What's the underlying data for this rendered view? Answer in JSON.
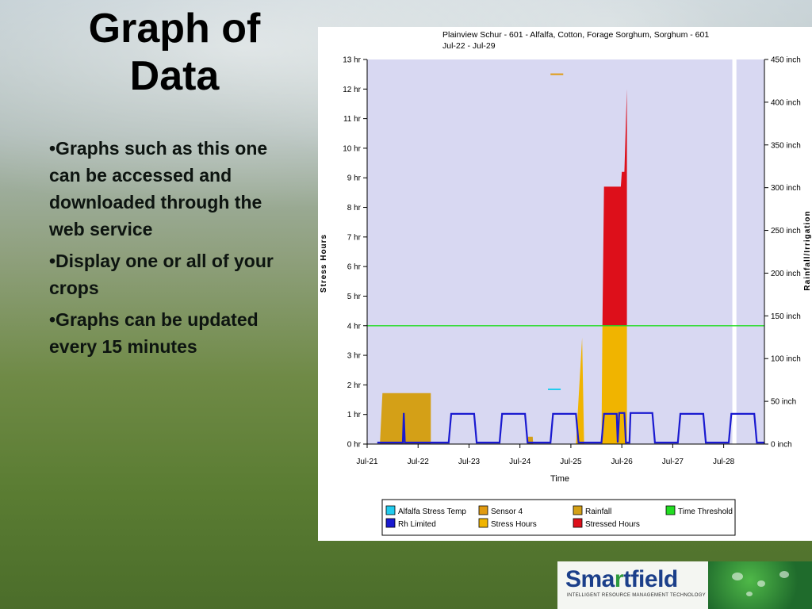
{
  "slide": {
    "title_line1": "Graph of",
    "title_line2": "Data",
    "bullets": [
      "•Graphs such as this one can be accessed and downloaded through the web service",
      "•Display one or all of your crops",
      "•Graphs can be updated every 15 minutes"
    ]
  },
  "logo": {
    "word_left": "Sma",
    "word_accent": "r",
    "word_right": "tfield",
    "tagline": "INTELLIGENT RESOURCE MANAGEMENT TECHNOLOGY"
  },
  "chart_data": {
    "type": "area",
    "title": "Plainview Schur - 601 - Alfalfa, Cotton, Forage Sorghum, Sorghum - 601",
    "subtitle": "Jul-22 - Jul-29",
    "xlabel": "Time",
    "ylabel": "Stress Hours",
    "y2label": "Rainfall/Irrigation",
    "xlim": [
      0,
      7.8
    ],
    "ylim": [
      0,
      13
    ],
    "y2lim": [
      0,
      450
    ],
    "x_ticks": [
      "Jul-21",
      "Jul-22",
      "Jul-23",
      "Jul-24",
      "Jul-25",
      "Jul-26",
      "Jul-27",
      "Jul-28"
    ],
    "y_ticks": [
      "0 hr",
      "1 hr",
      "2 hr",
      "3 hr",
      "4 hr",
      "5 hr",
      "6 hr",
      "7 hr",
      "8 hr",
      "9 hr",
      "10 hr",
      "11 hr",
      "12 hr",
      "13 hr"
    ],
    "y2_ticks": [
      "0 inch",
      "50 inch",
      "100 inch",
      "150 inch",
      "200 inch",
      "250 inch",
      "300 inch",
      "350 inch",
      "400 inch",
      "450 inch"
    ],
    "time_threshold": 4,
    "series": [
      {
        "name": "Alfalfa Stress Temp",
        "color": "#22ccee",
        "segments": [
          [
            [
              3.55,
              1.85
            ],
            [
              3.8,
              1.85
            ]
          ]
        ]
      },
      {
        "name": "Sensor 4",
        "color": "#e09a10",
        "segments": [
          [
            [
              3.6,
              12.5
            ],
            [
              3.85,
              12.5
            ]
          ]
        ]
      },
      {
        "name": "Rainfall",
        "color": "#d4a017",
        "areas": [
          [
            [
              0.25,
              0
            ],
            [
              0.3,
              1.72
            ],
            [
              1.25,
              1.72
            ],
            [
              1.25,
              0
            ]
          ],
          [
            [
              3.15,
              0
            ],
            [
              3.16,
              0.25
            ],
            [
              3.25,
              0.25
            ],
            [
              3.26,
              0
            ]
          ]
        ]
      },
      {
        "name": "Time Threshold",
        "color": "#22dd22",
        "value": 4
      },
      {
        "name": "Rh Limited",
        "color": "#1a1ad0",
        "points": [
          [
            0.2,
            0.05
          ],
          [
            0.7,
            0.05
          ],
          [
            0.72,
            1.05
          ],
          [
            0.74,
            0.05
          ],
          [
            1.6,
            0.05
          ],
          [
            1.65,
            1.02
          ],
          [
            2.1,
            1.02
          ],
          [
            2.15,
            0.05
          ],
          [
            2.6,
            0.05
          ],
          [
            2.65,
            1.02
          ],
          [
            3.1,
            1.02
          ],
          [
            3.15,
            0.05
          ],
          [
            3.6,
            0.05
          ],
          [
            3.65,
            1.02
          ],
          [
            4.1,
            1.02
          ],
          [
            4.15,
            0.05
          ],
          [
            4.6,
            0.05
          ],
          [
            4.65,
            1.02
          ],
          [
            4.9,
            1.02
          ],
          [
            4.92,
            0.05
          ],
          [
            4.95,
            1.05
          ],
          [
            5.05,
            1.05
          ],
          [
            5.08,
            0.05
          ],
          [
            5.15,
            0.05
          ],
          [
            5.17,
            1.05
          ],
          [
            5.6,
            1.05
          ],
          [
            5.65,
            0.05
          ],
          [
            6.1,
            0.05
          ],
          [
            6.15,
            1.02
          ],
          [
            6.6,
            1.02
          ],
          [
            6.65,
            0.05
          ],
          [
            7.1,
            0.05
          ],
          [
            7.15,
            1.02
          ],
          [
            7.6,
            1.02
          ],
          [
            7.65,
            0.05
          ],
          [
            7.8,
            0.05
          ]
        ]
      },
      {
        "name": "Stress Hours",
        "color": "#f0b400",
        "areas": [
          [
            [
              4.1,
              0
            ],
            [
              4.22,
              3.6
            ],
            [
              4.26,
              0
            ]
          ],
          [
            [
              4.6,
              0
            ],
            [
              4.62,
              4
            ],
            [
              5.1,
              4
            ],
            [
              5.1,
              0
            ]
          ]
        ]
      },
      {
        "name": "Stressed Hours",
        "color": "#dd0f1a",
        "areas": [
          [
            [
              4.62,
              4
            ],
            [
              4.65,
              8.7
            ],
            [
              4.98,
              8.7
            ],
            [
              5.0,
              9.2
            ],
            [
              5.05,
              9.2
            ],
            [
              5.1,
              12.0
            ],
            [
              5.1,
              4
            ]
          ]
        ]
      }
    ]
  }
}
